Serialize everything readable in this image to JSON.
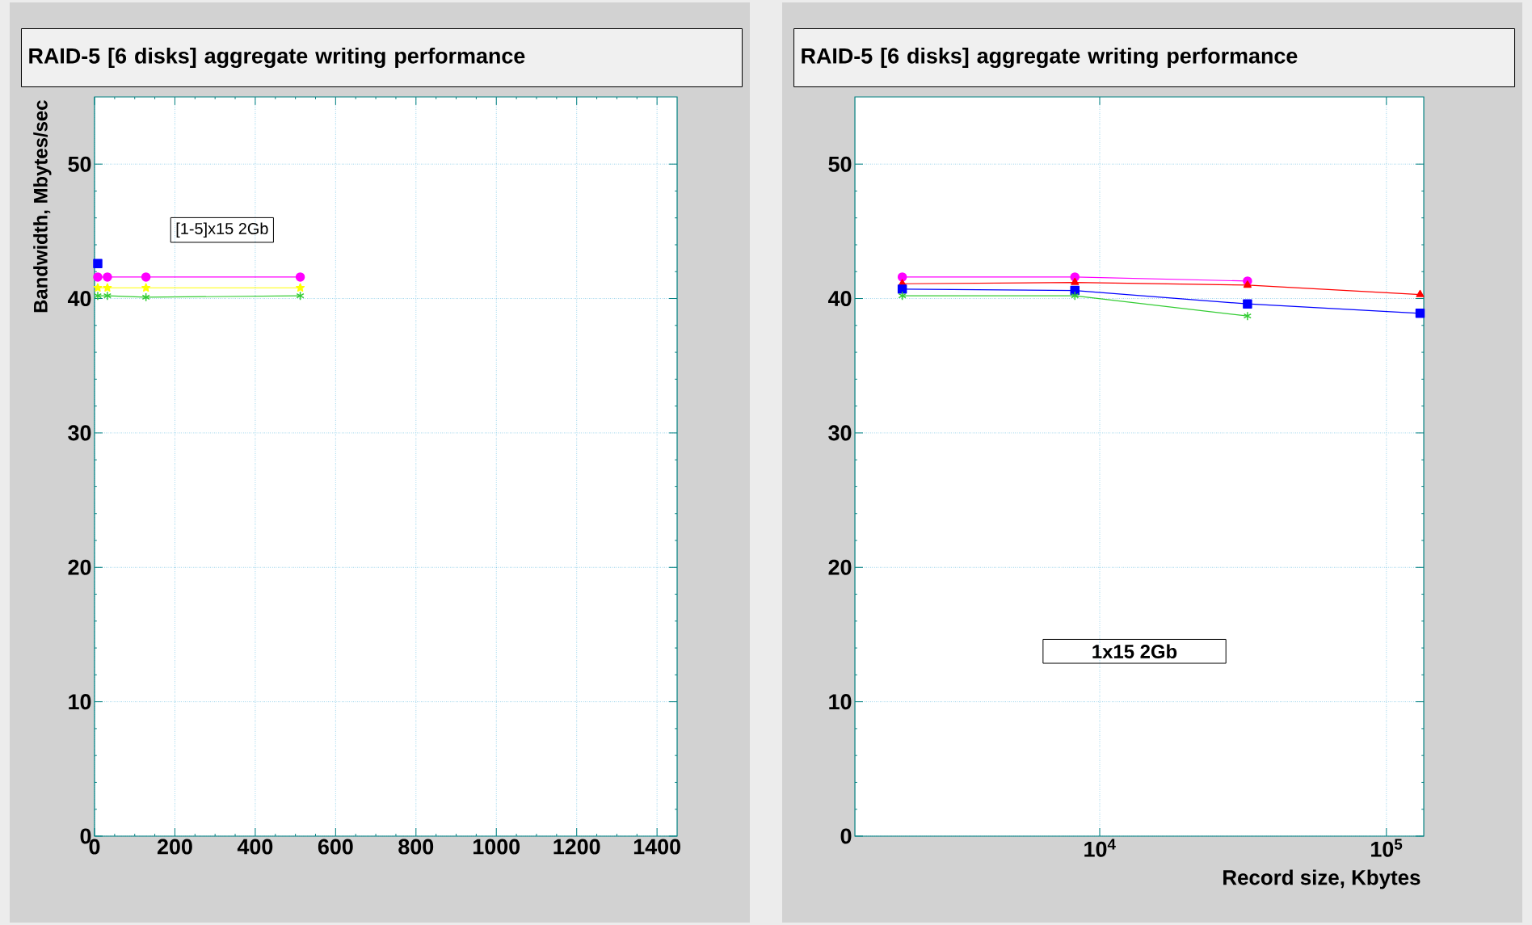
{
  "chart_data": [
    {
      "type": "line",
      "title": "RAID-5 [6 disks] aggregate writing performance",
      "ylabel": "Bandwidth, Mbytes/sec",
      "x": [
        8,
        32,
        128,
        512
      ],
      "series": [
        {
          "color": "#0000ff",
          "marker": "square",
          "values": [
            42.6,
            null,
            null,
            null
          ]
        },
        {
          "color": "#ff00ff",
          "marker": "circle",
          "values": [
            41.6,
            41.6,
            41.6,
            41.6
          ]
        },
        {
          "color": "#33cc33",
          "marker": "cross",
          "values": [
            40.2,
            40.2,
            40.1,
            40.2
          ]
        },
        {
          "color": "#ffff00",
          "marker": "star",
          "values": [
            40.8,
            40.8,
            40.8,
            40.8
          ]
        }
      ],
      "xlim": [
        0,
        1450
      ],
      "ylim": [
        0,
        55
      ],
      "xticks": [
        0,
        200,
        400,
        600,
        800,
        1000,
        1200,
        1400
      ],
      "yticks": [
        0,
        10,
        20,
        30,
        40,
        50
      ],
      "grid": true,
      "annotations": [
        "[1-5]x15 2Gb"
      ]
    },
    {
      "type": "line",
      "title": "RAID-5 [6 disks] aggregate writing performance",
      "xlabel": "Record size, Kbytes",
      "x": [
        2048,
        8192,
        32768,
        131072
      ],
      "series": [
        {
          "color": "#ff00ff",
          "marker": "circle",
          "values": [
            41.6,
            41.6,
            41.3,
            null
          ]
        },
        {
          "color": "#ff0000",
          "marker": "triangle",
          "values": [
            41.1,
            41.2,
            41.0,
            40.3
          ]
        },
        {
          "color": "#0000ff",
          "marker": "square",
          "values": [
            40.7,
            40.6,
            39.6,
            38.9
          ]
        },
        {
          "color": "#33cc33",
          "marker": "cross",
          "values": [
            40.2,
            40.2,
            38.7,
            null
          ]
        }
      ],
      "log": "x",
      "xlim": [
        1400,
        135000
      ],
      "ylim": [
        0,
        55
      ],
      "xticks": [
        {
          "value": 10000,
          "label": "10$^{4}$"
        },
        {
          "value": 100000,
          "label": "10$^{5}$"
        }
      ],
      "yticks": [
        0,
        10,
        20,
        30,
        40,
        50
      ],
      "grid": true,
      "annotations": [
        "1x15 2Gb"
      ]
    }
  ]
}
